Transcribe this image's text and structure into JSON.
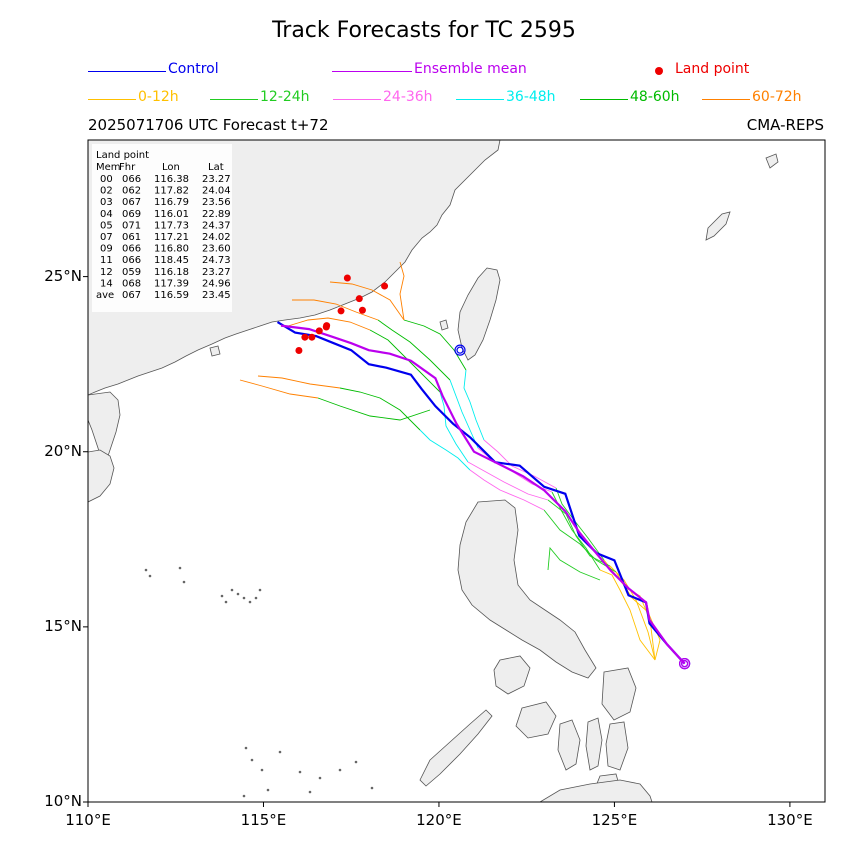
{
  "title": "Track Forecasts for TC 2595",
  "subtitle_left": "2025071706 UTC Forecast t+72",
  "subtitle_right": "CMA-REPS",
  "legend": {
    "control": {
      "label": "Control",
      "color": "#0000ee"
    },
    "mean": {
      "label": "Ensemble mean",
      "color": "#bb00ee"
    },
    "land": {
      "label": "Land point",
      "color": "#ee0000"
    },
    "periods": [
      {
        "label": "0-12h",
        "color": "#ffc000"
      },
      {
        "label": "12-24h",
        "color": "#22cc22"
      },
      {
        "label": "24-36h",
        "color": "#ff66ee"
      },
      {
        "label": "36-48h",
        "color": "#00eeee"
      },
      {
        "label": "48-60h",
        "color": "#00bb00"
      },
      {
        "label": "60-72h",
        "color": "#ff8000"
      }
    ]
  },
  "axes": {
    "xlim": [
      110,
      131
    ],
    "ylim": [
      10,
      28.9
    ],
    "xticks": [
      {
        "v": 110,
        "label": "110°E"
      },
      {
        "v": 115,
        "label": "115°E"
      },
      {
        "v": 120,
        "label": "120°E"
      },
      {
        "v": 125,
        "label": "125°E"
      },
      {
        "v": 130,
        "label": "130°E"
      }
    ],
    "yticks": [
      {
        "v": 10,
        "label": "10°N"
      },
      {
        "v": 15,
        "label": "15°N"
      },
      {
        "v": 20,
        "label": "20°N"
      },
      {
        "v": 25,
        "label": "25°N"
      }
    ]
  },
  "land_table": {
    "title": "Land point",
    "header": [
      "Mem",
      "Fhr",
      "Lon",
      "Lat"
    ],
    "rows": [
      [
        "00",
        "066",
        "116.38",
        "23.27"
      ],
      [
        "02",
        "062",
        "117.82",
        "24.04"
      ],
      [
        "03",
        "067",
        "116.79",
        "23.56"
      ],
      [
        "04",
        "069",
        "116.01",
        "22.89"
      ],
      [
        "05",
        "071",
        "117.73",
        "24.37"
      ],
      [
        "07",
        "061",
        "117.21",
        "24.02"
      ],
      [
        "09",
        "066",
        "116.80",
        "23.60"
      ],
      [
        "11",
        "066",
        "118.45",
        "24.73"
      ],
      [
        "12",
        "059",
        "116.18",
        "23.27"
      ],
      [
        "14",
        "068",
        "117.39",
        "24.96"
      ],
      [
        "ave",
        "067",
        "116.59",
        "23.45"
      ]
    ]
  },
  "control_track": [
    [
      127.0,
      13.95
    ],
    [
      126.5,
      14.5
    ],
    [
      126.0,
      15.1
    ],
    [
      125.9,
      15.7
    ],
    [
      125.4,
      15.9
    ],
    [
      125.0,
      16.9
    ],
    [
      124.5,
      17.1
    ],
    [
      124.0,
      17.6
    ],
    [
      123.8,
      18.2
    ],
    [
      123.6,
      18.8
    ],
    [
      123.0,
      19.0
    ],
    [
      122.3,
      19.6
    ],
    [
      121.6,
      19.7
    ],
    [
      120.9,
      20.4
    ],
    [
      120.4,
      20.8
    ],
    [
      119.9,
      21.3
    ],
    [
      119.5,
      21.8
    ],
    [
      119.2,
      22.2
    ],
    [
      118.5,
      22.4
    ],
    [
      118.0,
      22.5
    ],
    [
      117.5,
      22.9
    ],
    [
      117.0,
      23.1
    ],
    [
      116.5,
      23.3
    ],
    [
      115.9,
      23.4
    ],
    [
      115.4,
      23.7
    ]
  ],
  "mean_track": [
    [
      127.0,
      13.95
    ],
    [
      126.5,
      14.5
    ],
    [
      126.0,
      15.2
    ],
    [
      125.9,
      15.7
    ],
    [
      125.4,
      16.1
    ],
    [
      124.9,
      16.6
    ],
    [
      124.4,
      17.2
    ],
    [
      124.0,
      17.7
    ],
    [
      123.6,
      18.3
    ],
    [
      123.0,
      18.9
    ],
    [
      122.4,
      19.3
    ],
    [
      121.8,
      19.6
    ],
    [
      121.0,
      20.0
    ],
    [
      120.5,
      20.8
    ],
    [
      120.1,
      21.6
    ],
    [
      119.9,
      22.1
    ],
    [
      119.2,
      22.6
    ],
    [
      118.6,
      22.8
    ],
    [
      118.0,
      22.9
    ],
    [
      117.5,
      23.1
    ],
    [
      116.9,
      23.3
    ],
    [
      116.3,
      23.5
    ],
    [
      115.5,
      23.6
    ]
  ],
  "land_points": [
    [
      116.38,
      23.27
    ],
    [
      117.82,
      24.04
    ],
    [
      116.79,
      23.56
    ],
    [
      116.01,
      22.89
    ],
    [
      117.73,
      24.37
    ],
    [
      117.21,
      24.02
    ],
    [
      116.8,
      23.6
    ],
    [
      118.45,
      24.73
    ],
    [
      116.18,
      23.27
    ],
    [
      117.39,
      24.96
    ],
    [
      116.59,
      23.45
    ]
  ],
  "control_start": [
    127.0,
    13.95
  ],
  "control_alt_start": [
    120.6,
    22.9
  ]
}
